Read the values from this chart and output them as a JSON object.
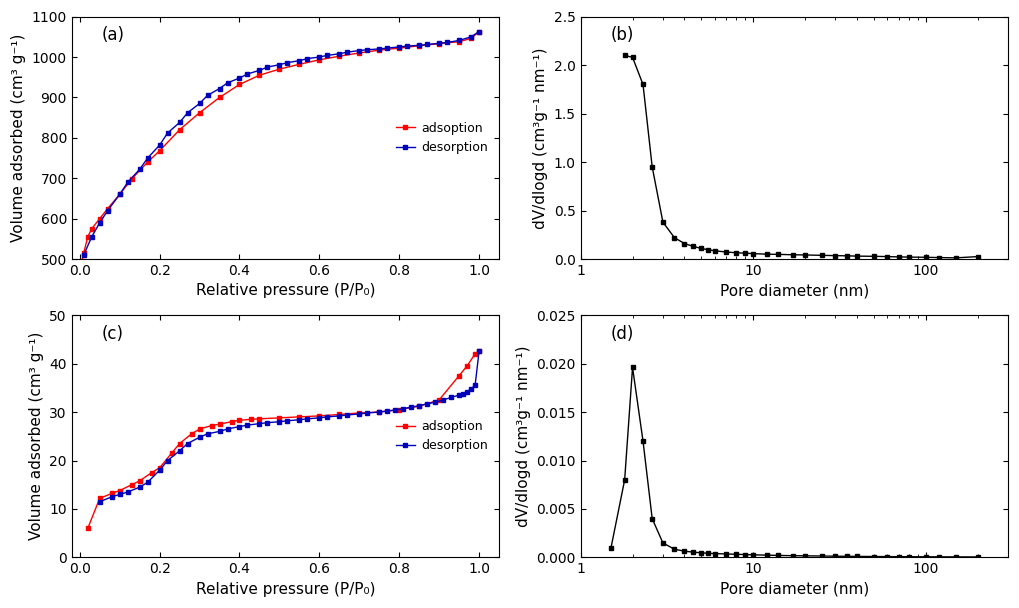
{
  "panel_a": {
    "label": "(a)",
    "adsorption_x": [
      0.001,
      0.003,
      0.005,
      0.01,
      0.02,
      0.03,
      0.05,
      0.07,
      0.1,
      0.13,
      0.17,
      0.2,
      0.25,
      0.3,
      0.35,
      0.4,
      0.45,
      0.5,
      0.55,
      0.6,
      0.65,
      0.7,
      0.75,
      0.8,
      0.85,
      0.9,
      0.95,
      0.98,
      1.0
    ],
    "adsorption_y": [
      487,
      490,
      495,
      515,
      555,
      575,
      600,
      625,
      660,
      698,
      740,
      768,
      820,
      862,
      900,
      932,
      955,
      970,
      982,
      993,
      1002,
      1010,
      1017,
      1022,
      1028,
      1033,
      1038,
      1046,
      1063
    ],
    "desorption_x": [
      1.0,
      0.98,
      0.95,
      0.92,
      0.9,
      0.87,
      0.85,
      0.82,
      0.8,
      0.77,
      0.75,
      0.72,
      0.7,
      0.67,
      0.65,
      0.62,
      0.6,
      0.57,
      0.55,
      0.52,
      0.5,
      0.47,
      0.45,
      0.42,
      0.4,
      0.37,
      0.35,
      0.32,
      0.3,
      0.27,
      0.25,
      0.22,
      0.2,
      0.17,
      0.15,
      0.12,
      0.1,
      0.07,
      0.05,
      0.03,
      0.01
    ],
    "desorption_y": [
      1063,
      1050,
      1041,
      1036,
      1034,
      1031,
      1029,
      1027,
      1025,
      1022,
      1020,
      1018,
      1016,
      1012,
      1008,
      1004,
      1000,
      996,
      991,
      986,
      981,
      975,
      967,
      958,
      948,
      936,
      922,
      905,
      885,
      862,
      838,
      812,
      782,
      750,
      722,
      690,
      660,
      620,
      590,
      555,
      510
    ],
    "ylabel": "Volume adsorbed (cm³ g⁻¹)",
    "xlabel": "Relative pressure (P/P₀)",
    "ylim": [
      500,
      1100
    ],
    "xlim": [
      -0.02,
      1.05
    ],
    "yticks": [
      500,
      600,
      700,
      800,
      900,
      1000,
      1100
    ],
    "xticks": [
      0.0,
      0.2,
      0.4,
      0.6,
      0.8,
      1.0
    ]
  },
  "panel_b": {
    "label": "(b)",
    "x": [
      1.8,
      2.0,
      2.3,
      2.6,
      3.0,
      3.5,
      4.0,
      4.5,
      5.0,
      5.5,
      6.0,
      7.0,
      8.0,
      9.0,
      10.0,
      12.0,
      14.0,
      17.0,
      20.0,
      25.0,
      30.0,
      35.0,
      40.0,
      50.0,
      60.0,
      70.0,
      80.0,
      100.0,
      120.0,
      150.0,
      200.0
    ],
    "y": [
      2.1,
      2.08,
      1.8,
      0.95,
      0.38,
      0.22,
      0.16,
      0.13,
      0.11,
      0.095,
      0.085,
      0.072,
      0.065,
      0.06,
      0.056,
      0.05,
      0.048,
      0.044,
      0.042,
      0.038,
      0.035,
      0.033,
      0.03,
      0.028,
      0.025,
      0.022,
      0.02,
      0.018,
      0.015,
      0.012,
      0.025
    ],
    "ylabel": "dV/dlogd (cm³g⁻¹ nm⁻¹)",
    "xlabel": "Pore diameter (nm)",
    "ylim": [
      0,
      2.5
    ],
    "xlim": [
      1,
      300
    ],
    "yticks": [
      0.0,
      0.5,
      1.0,
      1.5,
      2.0,
      2.5
    ],
    "xticks": [
      1,
      10,
      100
    ]
  },
  "panel_c": {
    "label": "(c)",
    "adsorption_x": [
      0.02,
      0.05,
      0.08,
      0.1,
      0.13,
      0.15,
      0.18,
      0.2,
      0.23,
      0.25,
      0.28,
      0.3,
      0.33,
      0.35,
      0.38,
      0.4,
      0.43,
      0.45,
      0.5,
      0.55,
      0.6,
      0.65,
      0.7,
      0.75,
      0.8,
      0.85,
      0.9,
      0.95,
      0.97,
      0.99,
      1.0
    ],
    "adsorption_y": [
      6.0,
      12.2,
      13.2,
      13.8,
      15.0,
      15.8,
      17.5,
      18.5,
      21.5,
      23.5,
      25.5,
      26.5,
      27.2,
      27.5,
      28.0,
      28.3,
      28.5,
      28.6,
      28.8,
      29.0,
      29.2,
      29.5,
      29.8,
      30.0,
      30.5,
      31.2,
      32.5,
      37.5,
      39.5,
      42.0,
      42.5
    ],
    "desorption_x": [
      1.0,
      0.99,
      0.98,
      0.97,
      0.96,
      0.95,
      0.93,
      0.91,
      0.89,
      0.87,
      0.85,
      0.83,
      0.81,
      0.79,
      0.77,
      0.75,
      0.72,
      0.7,
      0.67,
      0.65,
      0.62,
      0.6,
      0.57,
      0.55,
      0.52,
      0.5,
      0.47,
      0.45,
      0.42,
      0.4,
      0.37,
      0.35,
      0.32,
      0.3,
      0.27,
      0.25,
      0.22,
      0.2,
      0.17,
      0.15,
      0.12,
      0.1,
      0.08,
      0.05
    ],
    "desorption_y": [
      42.5,
      35.5,
      34.8,
      34.2,
      33.8,
      33.5,
      33.0,
      32.5,
      32.0,
      31.7,
      31.3,
      31.0,
      30.7,
      30.4,
      30.2,
      30.0,
      29.8,
      29.6,
      29.4,
      29.2,
      29.0,
      28.8,
      28.6,
      28.4,
      28.2,
      28.0,
      27.8,
      27.6,
      27.3,
      27.0,
      26.5,
      26.0,
      25.5,
      24.8,
      23.5,
      22.0,
      20.0,
      18.0,
      15.5,
      14.5,
      13.5,
      13.0,
      12.5,
      11.5
    ],
    "ylabel": "Volume adsorbed (cm³ g⁻¹)",
    "xlabel": "Relative pressure (P/P₀)",
    "ylim": [
      0,
      50
    ],
    "xlim": [
      -0.02,
      1.05
    ],
    "yticks": [
      0,
      10,
      20,
      30,
      40,
      50
    ],
    "xticks": [
      0.0,
      0.2,
      0.4,
      0.6,
      0.8,
      1.0
    ]
  },
  "panel_d": {
    "label": "(d)",
    "x": [
      1.5,
      1.8,
      2.0,
      2.3,
      2.6,
      3.0,
      3.5,
      4.0,
      4.5,
      5.0,
      5.5,
      6.0,
      7.0,
      8.0,
      9.0,
      10.0,
      12.0,
      14.0,
      17.0,
      20.0,
      25.0,
      30.0,
      35.0,
      40.0,
      50.0,
      60.0,
      70.0,
      80.0,
      100.0,
      120.0,
      150.0,
      200.0
    ],
    "y": [
      0.001,
      0.008,
      0.0196,
      0.012,
      0.004,
      0.0015,
      0.00085,
      0.00065,
      0.00055,
      0.00048,
      0.00043,
      0.0004,
      0.00036,
      0.00033,
      0.0003,
      0.00027,
      0.00024,
      0.00021,
      0.000185,
      0.00017,
      0.00015,
      0.00013,
      0.00012,
      0.00011,
      0.0001,
      9e-05,
      8.2e-05,
      7.5e-05,
      7e-05,
      6.5e-05,
      6e-05,
      5.5e-05
    ],
    "ylabel": "dV/dlogd (cm³g⁻¹ nm⁻¹)",
    "xlabel": "Pore diameter (nm)",
    "ylim": [
      0,
      0.025
    ],
    "xlim": [
      1,
      300
    ],
    "yticks": [
      0.0,
      0.005,
      0.01,
      0.015,
      0.02,
      0.025
    ],
    "xticks": [
      1,
      10,
      100
    ]
  },
  "adsorption_color": "#FF0000",
  "desorption_color": "#0000BB",
  "pore_color": "#000000",
  "marker_size": 3,
  "line_width": 1.0,
  "legend_fontsize": 9,
  "label_fontsize": 11,
  "tick_fontsize": 10,
  "panel_label_fontsize": 12
}
